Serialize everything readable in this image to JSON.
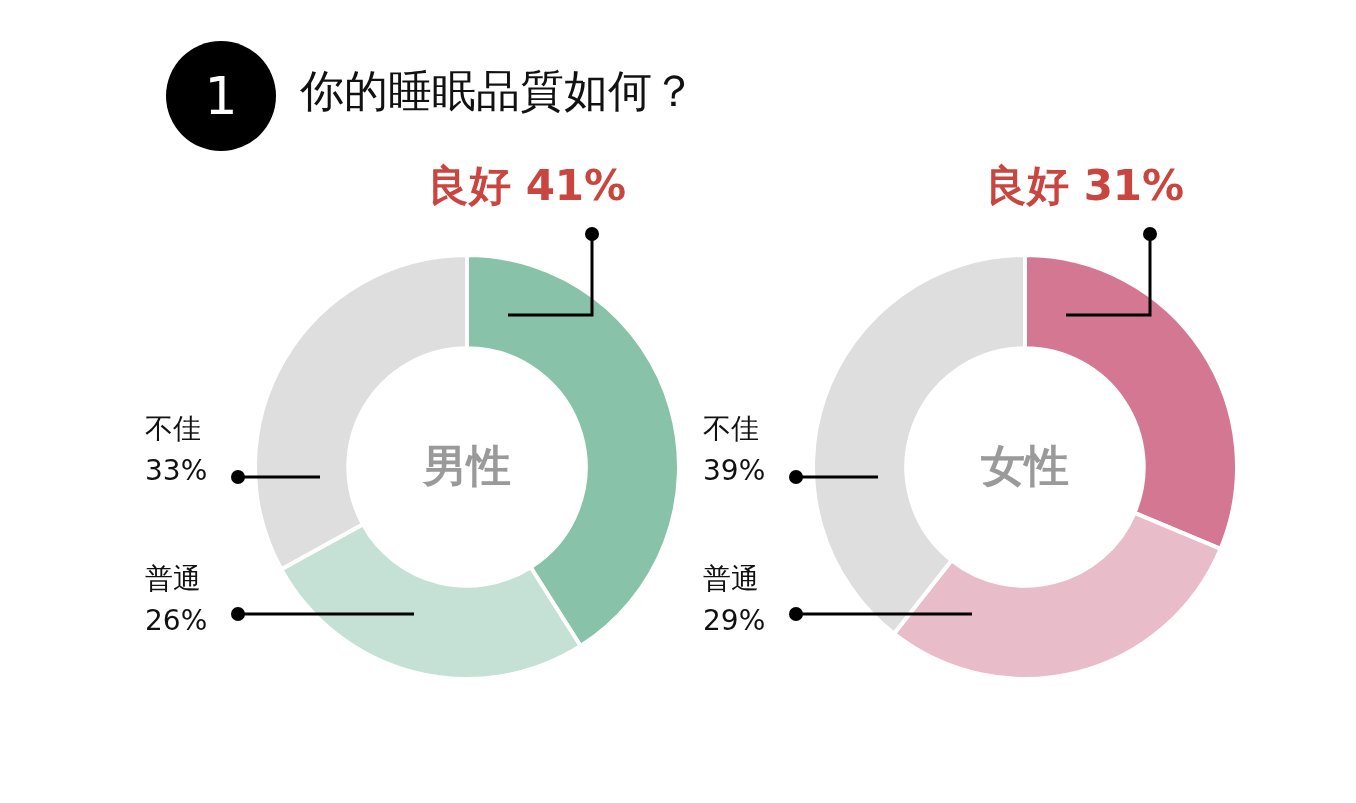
{
  "chart_data": [
    {
      "type": "donut",
      "title": "男性",
      "annotations": [
        "1",
        "你的睡眠品質如何？"
      ],
      "categories": [
        "良好",
        "普通",
        "不佳"
      ],
      "values": [
        41,
        26,
        33
      ],
      "value_labels": [
        "41%",
        "26%",
        "33%"
      ],
      "colors": [
        "#88c3a9",
        "#c5e1d5",
        "#dddedd"
      ]
    },
    {
      "type": "donut",
      "title": "女性",
      "categories": [
        "良好",
        "普通",
        "不佳"
      ],
      "values": [
        31,
        29,
        39
      ],
      "value_labels": [
        "31%",
        "29%",
        "39%"
      ],
      "colors": [
        "#d47793",
        "#e8bcc8",
        "#dddedd"
      ]
    }
  ]
}
